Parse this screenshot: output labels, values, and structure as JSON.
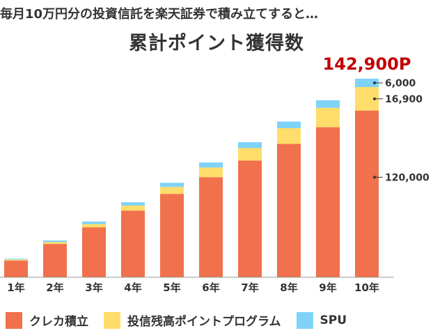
{
  "header": {
    "subtitle": "毎月10万円分の投資信託を楽天証券で積み立てすると…",
    "title": "累計ポイント獲得数"
  },
  "colors": {
    "credit": "#F0714B",
    "trust": "#FFDD6A",
    "spu": "#7FD3F7",
    "total": "#C00000",
    "axis": "#999999"
  },
  "chart_data": {
    "type": "bar",
    "stacked": true,
    "categories": [
      "1年",
      "2年",
      "3年",
      "4年",
      "5年",
      "6年",
      "7年",
      "8年",
      "9年",
      "10年"
    ],
    "series": [
      {
        "name": "クレカ積立",
        "values": [
          12000,
          24000,
          36000,
          48000,
          60000,
          72000,
          84000,
          96000,
          108000,
          120000
        ]
      },
      {
        "name": "投信残高ポイントプログラム",
        "values": [
          700,
          1300,
          2300,
          3600,
          5000,
          7000,
          9000,
          11300,
          14000,
          16900
        ]
      },
      {
        "name": "SPU",
        "values": [
          600,
          1200,
          1800,
          2400,
          3000,
          3600,
          4200,
          4800,
          5400,
          6000
        ]
      }
    ],
    "annotations": {
      "total": "142,900P",
      "labels": [
        "6,000",
        "16,900",
        "120,000"
      ]
    },
    "ylim": [
      0,
      142900
    ],
    "grid": false,
    "legend_position": "bottom"
  }
}
